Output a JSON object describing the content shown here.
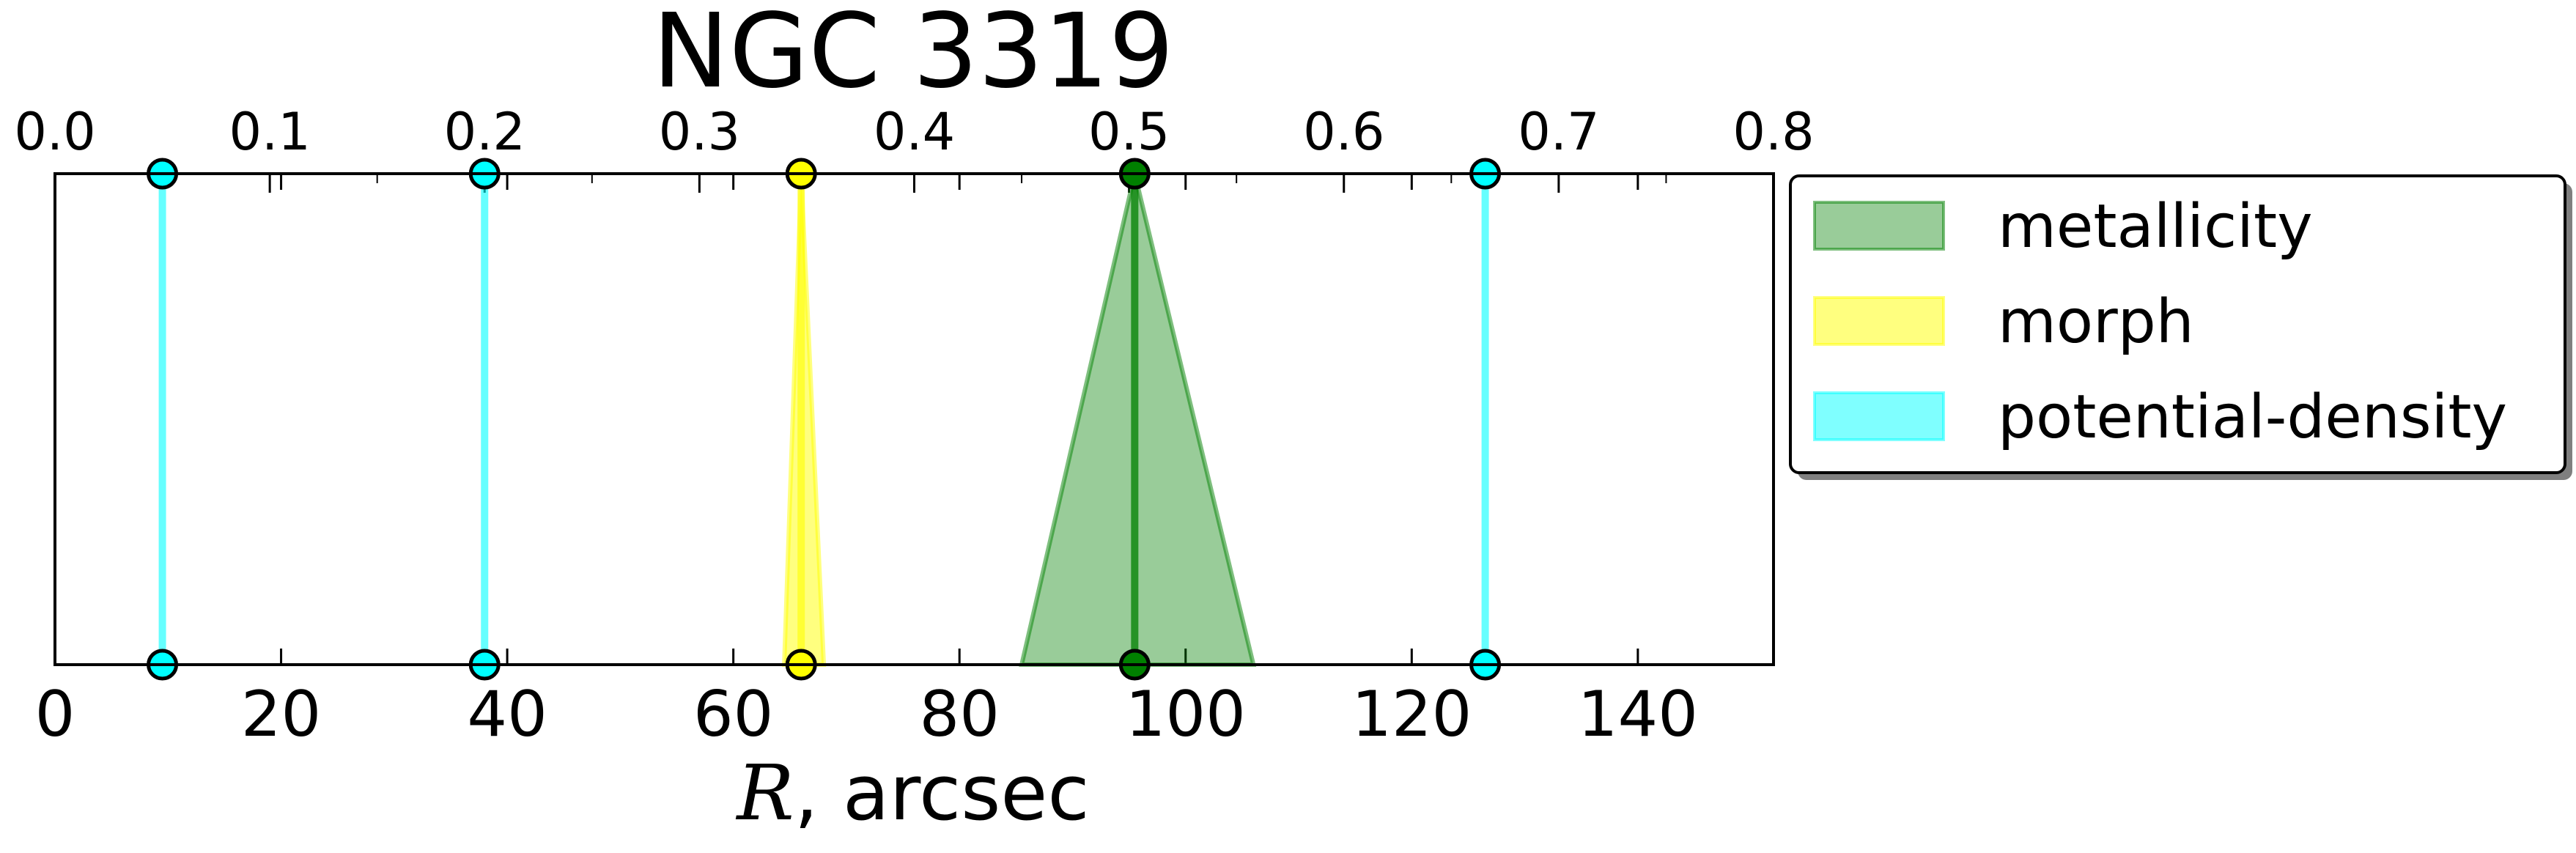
{
  "chart_data": {
    "type": "interval-markers",
    "title": "NGC 3319",
    "xlabel_math": "R",
    "xlabel_text": ", arcsec",
    "xlim": [
      0,
      152
    ],
    "xticks": [
      0,
      20,
      40,
      60,
      80,
      100,
      120,
      140
    ],
    "top_axis": {
      "lim": [
        0.0,
        0.8
      ],
      "ticks": [
        0.0,
        0.1,
        0.2,
        0.3,
        0.4,
        0.5,
        0.6,
        0.7,
        0.8
      ],
      "labels": [
        "0.0",
        "0.1",
        "0.2",
        "0.3",
        "0.4",
        "0.5",
        "0.6",
        "0.7",
        "0.8"
      ],
      "minor_ticks": [
        0.05,
        0.15,
        0.25,
        0.35,
        0.45,
        0.55,
        0.65,
        0.75
      ]
    },
    "grid": false,
    "legend_position": "outside-right-top",
    "series": [
      {
        "name": "metallicity",
        "color": "#008000",
        "fill_alpha": 0.4,
        "lines": [
          95.5
        ],
        "intervals": [
          {
            "center": 95.5,
            "low": 85.5,
            "high": 106.0
          }
        ]
      },
      {
        "name": "morph",
        "color": "#ffff00",
        "fill_alpha": 0.5,
        "lines": [
          66.0
        ],
        "intervals": [
          {
            "center": 66.0,
            "low": 64.5,
            "high": 68.0
          }
        ]
      },
      {
        "name": "potential-density",
        "color": "#00ffff",
        "fill_alpha": 0.5,
        "lines": [
          9.5,
          38.0,
          126.5
        ],
        "intervals": []
      }
    ]
  }
}
